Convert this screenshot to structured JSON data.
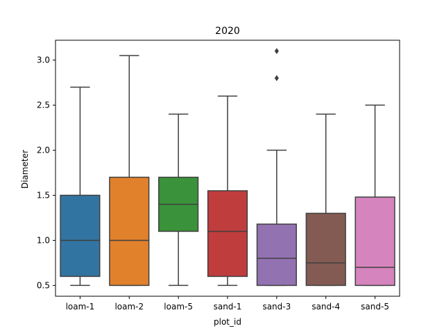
{
  "chart_data": {
    "type": "box",
    "title": "2020",
    "xlabel": "plot_id",
    "ylabel": "Diameter",
    "ylim": [
      0.38,
      3.22
    ],
    "yticks": [
      0.5,
      1.0,
      1.5,
      2.0,
      2.5,
      3.0
    ],
    "ytick_labels": [
      "0.5",
      "1.0",
      "1.5",
      "2.0",
      "2.5",
      "3.0"
    ],
    "grid": false,
    "categories": [
      "loam-1",
      "loam-2",
      "loam-5",
      "sand-1",
      "sand-3",
      "sand-4",
      "sand-5"
    ],
    "boxes": [
      {
        "category": "loam-1",
        "color": "#3274a1",
        "whisker_low": 0.5,
        "q1": 0.6,
        "median": 1.0,
        "q3": 1.5,
        "whisker_high": 2.7,
        "outliers": []
      },
      {
        "category": "loam-2",
        "color": "#e1812c",
        "whisker_low": 0.5,
        "q1": 0.5,
        "median": 1.0,
        "q3": 1.7,
        "whisker_high": 3.05,
        "outliers": []
      },
      {
        "category": "loam-5",
        "color": "#3a923a",
        "whisker_low": 0.5,
        "q1": 1.1,
        "median": 1.4,
        "q3": 1.7,
        "whisker_high": 2.4,
        "outliers": []
      },
      {
        "category": "sand-1",
        "color": "#c03d3e",
        "whisker_low": 0.5,
        "q1": 0.6,
        "median": 1.1,
        "q3": 1.55,
        "whisker_high": 2.6,
        "outliers": []
      },
      {
        "category": "sand-3",
        "color": "#9372b2",
        "whisker_low": 0.5,
        "q1": 0.5,
        "median": 0.8,
        "q3": 1.18,
        "whisker_high": 2.0,
        "outliers": [
          2.8,
          3.1
        ]
      },
      {
        "category": "sand-4",
        "color": "#845b53",
        "whisker_low": 0.5,
        "q1": 0.5,
        "median": 0.75,
        "q3": 1.3,
        "whisker_high": 2.4,
        "outliers": []
      },
      {
        "category": "sand-5",
        "color": "#d684bd",
        "whisker_low": 0.5,
        "q1": 0.5,
        "median": 0.7,
        "q3": 1.48,
        "whisker_high": 2.5,
        "outliers": []
      }
    ],
    "line_color": "#3f3f3f"
  }
}
